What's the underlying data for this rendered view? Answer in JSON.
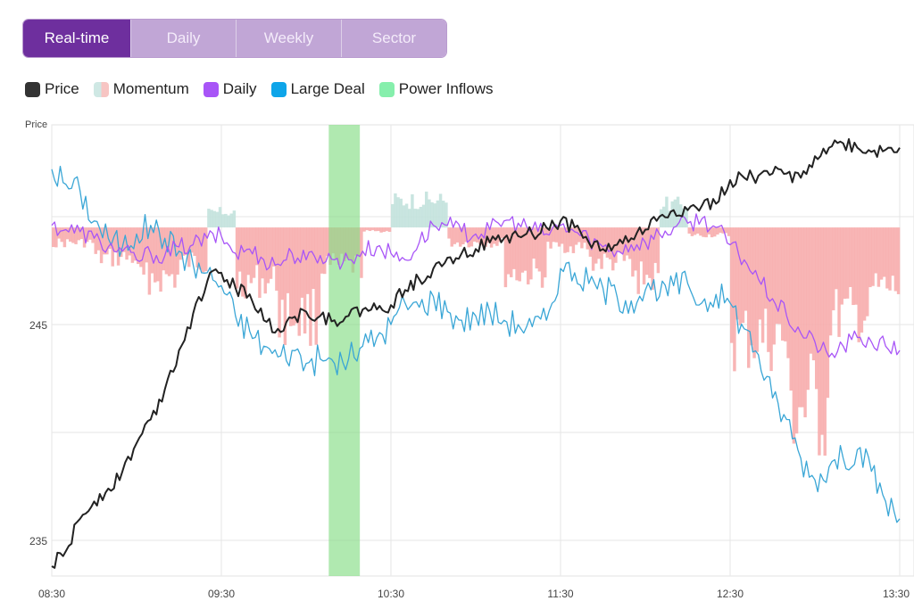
{
  "tabs": [
    "Real-time",
    "Daily",
    "Weekly",
    "Sector"
  ],
  "active_tab": "Real-time",
  "legend": [
    {
      "label": "Price",
      "color": "#333333"
    },
    {
      "label": "Momentum",
      "color": "#f5c9c6"
    },
    {
      "label": "Daily",
      "color": "#a855f7"
    },
    {
      "label": "Large Deal",
      "color": "#0ea5e9"
    },
    {
      "label": "Power Inflows",
      "color": "#86efac"
    }
  ],
  "chart_data": {
    "type": "line",
    "ylabel": "Price",
    "ylim": [
      233.4,
      254.4
    ],
    "xlim_minutes": [
      0,
      300
    ],
    "x_tick_labels": [
      "08:30",
      "09:30",
      "10:30",
      "11:30",
      "12:30",
      "13:30"
    ],
    "x_tick_minutes": [
      0,
      60,
      120,
      180,
      240,
      300
    ],
    "y_tick_labels": [
      "245",
      "235"
    ],
    "y_tick_values": [
      245,
      235
    ],
    "y_grid_values": [
      250,
      245,
      240,
      235
    ],
    "colors": {
      "price": "#222222",
      "daily": "#a855f7",
      "large_deal": "#3aa6d6",
      "momentum_negative": "#f7a8a8",
      "momentum_positive": "#bfe0da",
      "power_inflows": "#86dd86"
    },
    "power_inflows": [
      {
        "start_minute": 98,
        "end_minute": 109
      }
    ],
    "momentum_baseline": 249.5,
    "series": [
      {
        "name": "Price",
        "points": [
          [
            0,
            233.8
          ],
          [
            5,
            234.5
          ],
          [
            10,
            236.0
          ],
          [
            15,
            236.8
          ],
          [
            20,
            237.4
          ],
          [
            25,
            238.2
          ],
          [
            30,
            239.5
          ],
          [
            35,
            240.6
          ],
          [
            40,
            242.0
          ],
          [
            45,
            243.8
          ],
          [
            50,
            245.5
          ],
          [
            55,
            247.0
          ],
          [
            60,
            247.4
          ],
          [
            65,
            246.7
          ],
          [
            70,
            246.4
          ],
          [
            75,
            245.2
          ],
          [
            80,
            244.8
          ],
          [
            85,
            245.3
          ],
          [
            90,
            245.6
          ],
          [
            95,
            245.4
          ],
          [
            100,
            245.2
          ],
          [
            105,
            245.4
          ],
          [
            110,
            245.7
          ],
          [
            115,
            245.7
          ],
          [
            120,
            245.9
          ],
          [
            125,
            246.6
          ],
          [
            130,
            247.1
          ],
          [
            135,
            247.6
          ],
          [
            140,
            248.1
          ],
          [
            145,
            248.3
          ],
          [
            150,
            248.5
          ],
          [
            155,
            248.8
          ],
          [
            160,
            249.0
          ],
          [
            165,
            249.1
          ],
          [
            170,
            249.2
          ],
          [
            175,
            249.5
          ],
          [
            180,
            249.8
          ],
          [
            185,
            249.5
          ],
          [
            190,
            248.8
          ],
          [
            195,
            248.5
          ],
          [
            200,
            248.7
          ],
          [
            205,
            249.0
          ],
          [
            210,
            249.4
          ],
          [
            215,
            250.0
          ],
          [
            220,
            250.3
          ],
          [
            225,
            250.3
          ],
          [
            230,
            250.5
          ],
          [
            235,
            250.6
          ],
          [
            240,
            251.7
          ],
          [
            245,
            251.8
          ],
          [
            250,
            251.9
          ],
          [
            255,
            252.0
          ],
          [
            260,
            252.0
          ],
          [
            265,
            251.8
          ],
          [
            270,
            252.8
          ],
          [
            275,
            253.2
          ],
          [
            280,
            253.4
          ],
          [
            285,
            253.2
          ],
          [
            290,
            253.0
          ],
          [
            295,
            253.1
          ],
          [
            300,
            253.2
          ]
        ]
      },
      {
        "name": "Daily",
        "points": [
          [
            0,
            249.6
          ],
          [
            5,
            249.4
          ],
          [
            10,
            249.3
          ],
          [
            15,
            249.0
          ],
          [
            20,
            248.6
          ],
          [
            25,
            248.4
          ],
          [
            30,
            248.0
          ],
          [
            35,
            248.3
          ],
          [
            40,
            248.2
          ],
          [
            45,
            248.6
          ],
          [
            50,
            248.7
          ],
          [
            55,
            249.0
          ],
          [
            60,
            249.1
          ],
          [
            65,
            248.3
          ],
          [
            70,
            248.5
          ],
          [
            75,
            248.0
          ],
          [
            80,
            247.8
          ],
          [
            85,
            248.3
          ],
          [
            90,
            248.0
          ],
          [
            95,
            248.2
          ],
          [
            100,
            248.0
          ],
          [
            105,
            248.0
          ],
          [
            110,
            248.4
          ],
          [
            115,
            248.6
          ],
          [
            120,
            248.3
          ],
          [
            125,
            248.0
          ],
          [
            130,
            248.8
          ],
          [
            135,
            249.6
          ],
          [
            140,
            249.6
          ],
          [
            145,
            249.3
          ],
          [
            150,
            249.2
          ],
          [
            155,
            249.4
          ],
          [
            160,
            249.8
          ],
          [
            165,
            249.7
          ],
          [
            170,
            249.4
          ],
          [
            175,
            249.2
          ],
          [
            180,
            249.6
          ],
          [
            185,
            249.3
          ],
          [
            190,
            249.0
          ],
          [
            195,
            248.6
          ],
          [
            200,
            248.4
          ],
          [
            205,
            248.7
          ],
          [
            210,
            248.8
          ],
          [
            215,
            249.2
          ],
          [
            220,
            249.5
          ],
          [
            225,
            249.7
          ],
          [
            230,
            249.9
          ],
          [
            235,
            249.5
          ],
          [
            240,
            248.7
          ],
          [
            245,
            248.0
          ],
          [
            250,
            247.1
          ],
          [
            255,
            246.2
          ],
          [
            260,
            245.4
          ],
          [
            265,
            244.6
          ],
          [
            270,
            244.2
          ],
          [
            275,
            243.5
          ],
          [
            280,
            244.0
          ],
          [
            285,
            244.4
          ],
          [
            290,
            244.2
          ],
          [
            295,
            244.0
          ],
          [
            300,
            243.8
          ]
        ]
      },
      {
        "name": "Large Deal",
        "points": [
          [
            0,
            252.2
          ],
          [
            5,
            251.5
          ],
          [
            10,
            251.2
          ],
          [
            15,
            249.8
          ],
          [
            20,
            249.0
          ],
          [
            25,
            248.6
          ],
          [
            30,
            249.2
          ],
          [
            35,
            249.6
          ],
          [
            40,
            249.0
          ],
          [
            45,
            248.4
          ],
          [
            50,
            247.8
          ],
          [
            55,
            247.4
          ],
          [
            60,
            246.8
          ],
          [
            65,
            245.4
          ],
          [
            70,
            244.7
          ],
          [
            75,
            244.0
          ],
          [
            80,
            243.5
          ],
          [
            85,
            243.8
          ],
          [
            90,
            243.2
          ],
          [
            95,
            243.4
          ],
          [
            100,
            243.2
          ],
          [
            105,
            243.4
          ],
          [
            110,
            244.0
          ],
          [
            115,
            244.4
          ],
          [
            120,
            245.0
          ],
          [
            125,
            246.0
          ],
          [
            130,
            245.8
          ],
          [
            135,
            246.3
          ],
          [
            140,
            245.6
          ],
          [
            145,
            245.2
          ],
          [
            150,
            245.4
          ],
          [
            155,
            245.6
          ],
          [
            160,
            245.2
          ],
          [
            165,
            245.0
          ],
          [
            170,
            244.9
          ],
          [
            175,
            245.2
          ],
          [
            180,
            247.6
          ],
          [
            185,
            247.4
          ],
          [
            190,
            246.9
          ],
          [
            195,
            246.7
          ],
          [
            200,
            246.3
          ],
          [
            205,
            246.1
          ],
          [
            210,
            246.6
          ],
          [
            215,
            246.3
          ],
          [
            220,
            246.8
          ],
          [
            225,
            246.9
          ],
          [
            230,
            246.0
          ],
          [
            235,
            246.4
          ],
          [
            240,
            246.0
          ],
          [
            245,
            244.8
          ],
          [
            250,
            243.6
          ],
          [
            255,
            241.6
          ],
          [
            260,
            240.6
          ],
          [
            265,
            238.8
          ],
          [
            270,
            237.8
          ],
          [
            275,
            238.4
          ],
          [
            280,
            238.8
          ],
          [
            285,
            239.2
          ],
          [
            290,
            238.2
          ],
          [
            295,
            236.8
          ],
          [
            300,
            236.0
          ]
        ]
      }
    ],
    "momentum": [
      {
        "start": 0,
        "end": 15,
        "value": -0.8
      },
      {
        "start": 15,
        "end": 30,
        "value": -1.6
      },
      {
        "start": 30,
        "end": 45,
        "value": -2.6
      },
      {
        "start": 45,
        "end": 55,
        "value": -1.8
      },
      {
        "start": 55,
        "end": 65,
        "value": 0.8
      },
      {
        "start": 65,
        "end": 80,
        "value": -2.8
      },
      {
        "start": 80,
        "end": 95,
        "value": -4.6
      },
      {
        "start": 95,
        "end": 110,
        "value": -2.0
      },
      {
        "start": 110,
        "end": 120,
        "value": -0.2
      },
      {
        "start": 120,
        "end": 140,
        "value": 1.4
      },
      {
        "start": 140,
        "end": 160,
        "value": -0.8
      },
      {
        "start": 160,
        "end": 175,
        "value": -2.4
      },
      {
        "start": 175,
        "end": 190,
        "value": -1.0
      },
      {
        "start": 190,
        "end": 205,
        "value": -1.8
      },
      {
        "start": 205,
        "end": 215,
        "value": -2.6
      },
      {
        "start": 215,
        "end": 225,
        "value": 1.2
      },
      {
        "start": 225,
        "end": 240,
        "value": -0.4
      },
      {
        "start": 240,
        "end": 260,
        "value": -5.8
      },
      {
        "start": 260,
        "end": 275,
        "value": -9.4
      },
      {
        "start": 275,
        "end": 290,
        "value": -4.6
      },
      {
        "start": 290,
        "end": 300,
        "value": -3.2
      }
    ]
  }
}
